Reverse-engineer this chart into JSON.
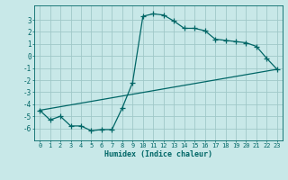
{
  "xlabel": "Humidex (Indice chaleur)",
  "bg_color": "#c8e8e8",
  "grid_color": "#a0c8c8",
  "line_color": "#006666",
  "xlim": [
    -0.5,
    23.5
  ],
  "ylim": [
    -7.0,
    4.2
  ],
  "xticks": [
    0,
    1,
    2,
    3,
    4,
    5,
    6,
    7,
    8,
    9,
    10,
    11,
    12,
    13,
    14,
    15,
    16,
    17,
    18,
    19,
    20,
    21,
    22,
    23
  ],
  "yticks": [
    -6,
    -5,
    -4,
    -3,
    -2,
    -1,
    0,
    1,
    2,
    3
  ],
  "line1_x": [
    0,
    1,
    2,
    3,
    4,
    5,
    6,
    7,
    8,
    9,
    10,
    11,
    12,
    13,
    14,
    15,
    16,
    17,
    18,
    19,
    20,
    21,
    22,
    23
  ],
  "line1_y": [
    -4.5,
    -5.3,
    -5.0,
    -5.8,
    -5.8,
    -6.2,
    -6.1,
    -6.1,
    -4.3,
    -2.2,
    3.3,
    3.5,
    3.4,
    2.9,
    2.3,
    2.3,
    2.1,
    1.4,
    1.3,
    1.2,
    1.1,
    0.8,
    -0.2,
    -1.1
  ],
  "line2_x": [
    0,
    23
  ],
  "line2_y": [
    -4.5,
    -1.1
  ],
  "marker": "+"
}
